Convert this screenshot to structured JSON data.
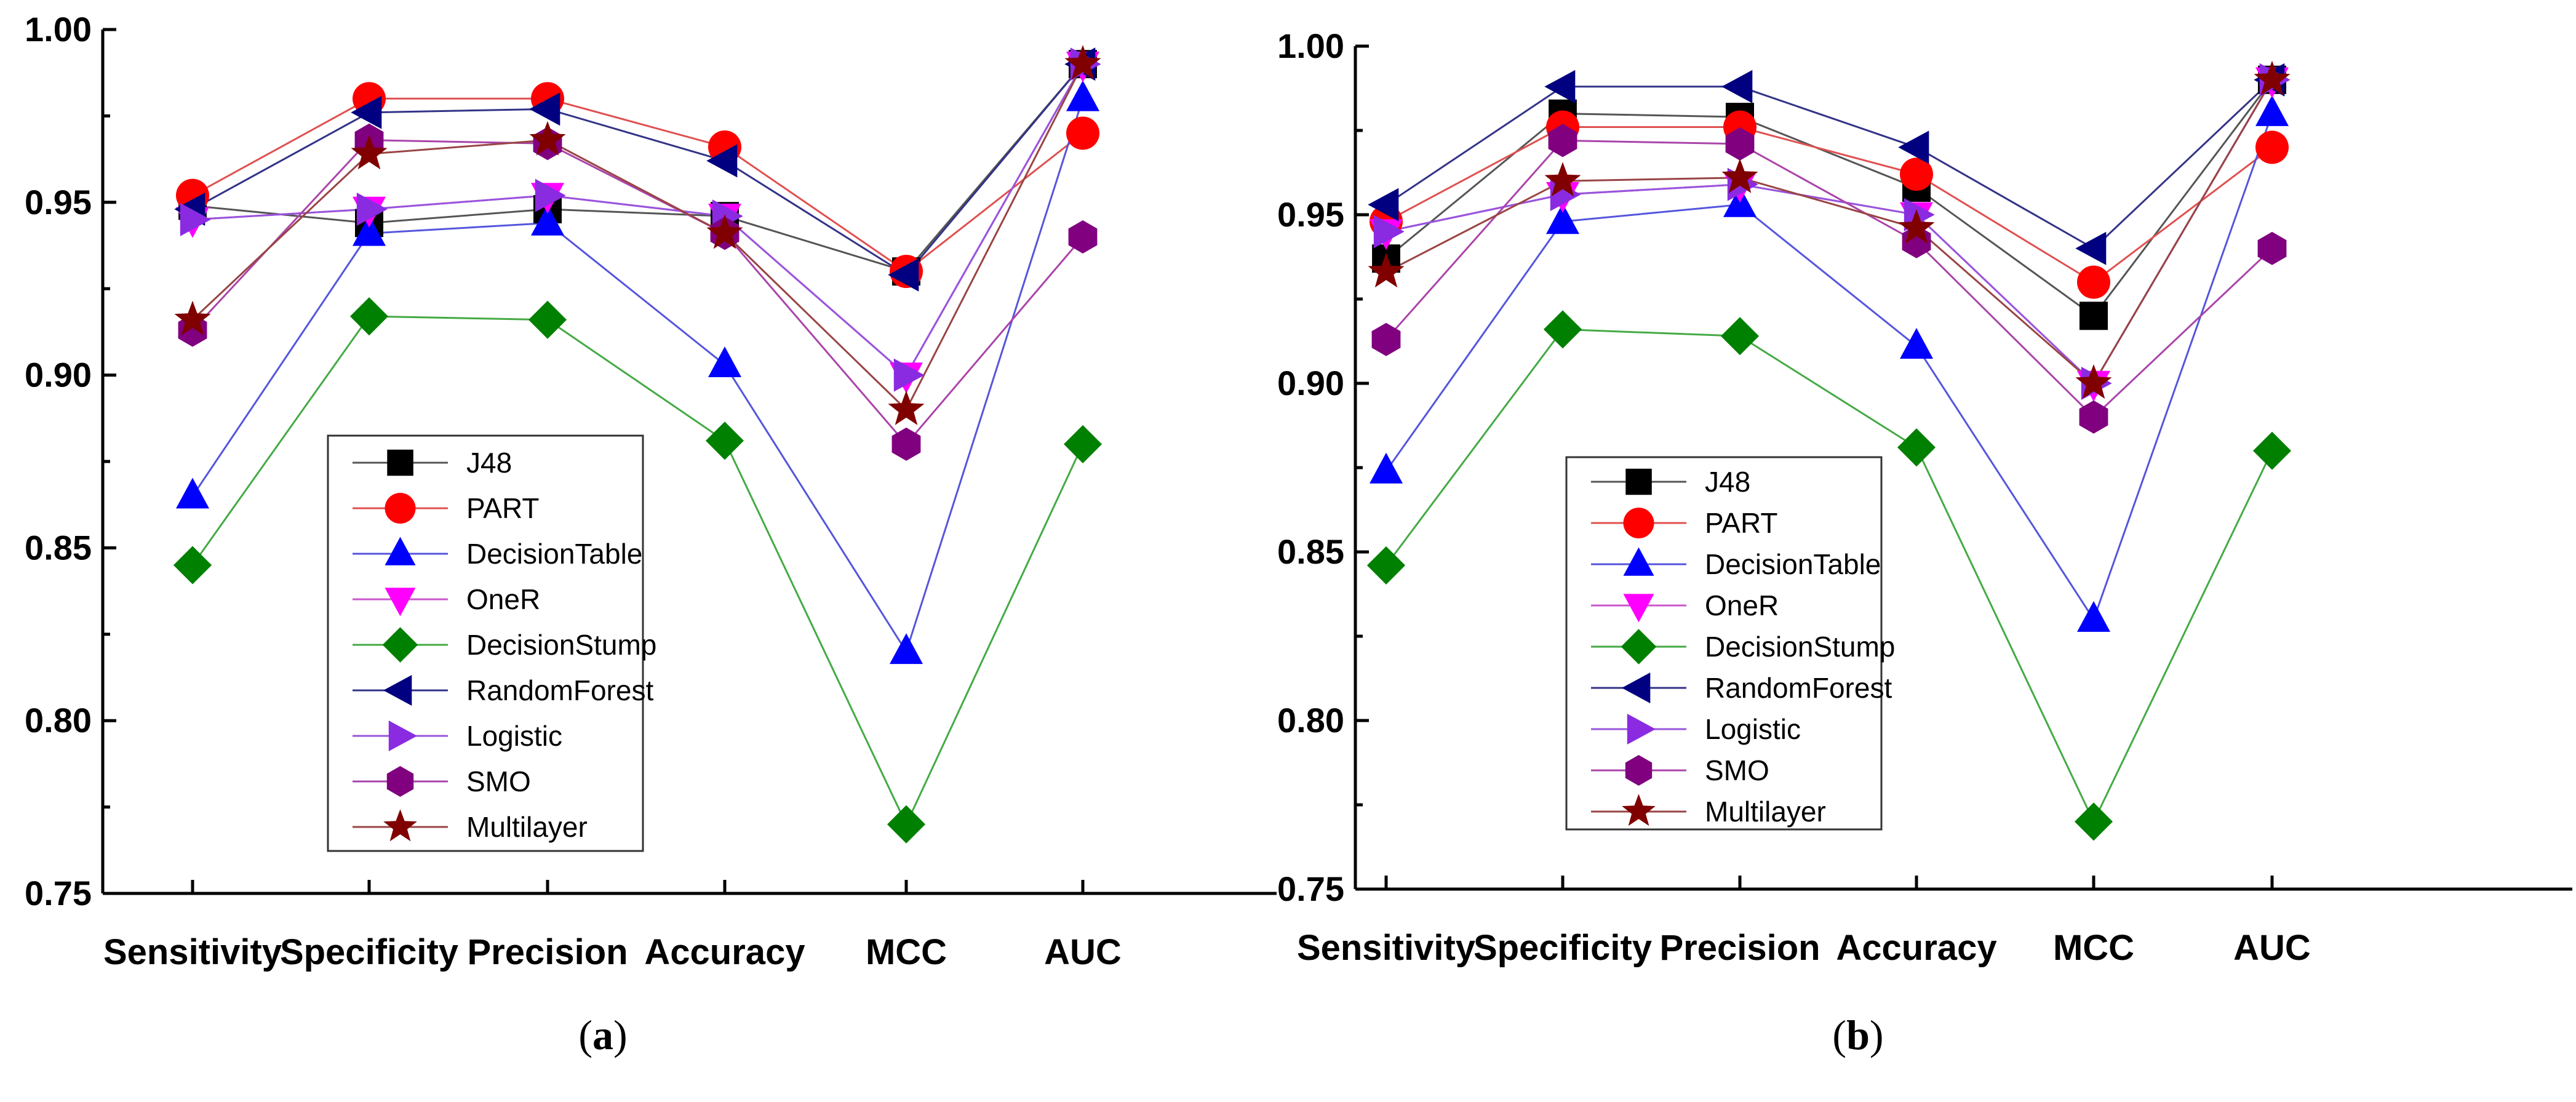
{
  "chart_data": [
    {
      "type": "line",
      "panel_label": "a",
      "categories": [
        "Sensitivity",
        "Specificity",
        "Precision",
        "Accuracy",
        "MCC",
        "AUC"
      ],
      "ylim": [
        0.75,
        1.0
      ],
      "yticks": [
        "0.75",
        "0.80",
        "0.85",
        "0.90",
        "0.95",
        "1.00"
      ],
      "legend_position": "center",
      "series": [
        {
          "name": "J48",
          "color": "#000000",
          "line_color": "#555555",
          "marker": "square",
          "values": [
            0.949,
            0.944,
            0.948,
            0.946,
            0.93,
            0.99
          ]
        },
        {
          "name": "PART",
          "color": "#ff0000",
          "line_color": "#e05050",
          "marker": "circle",
          "values": [
            0.952,
            0.98,
            0.98,
            0.966,
            0.93,
            0.97
          ]
        },
        {
          "name": "DecisionTable",
          "color": "#0000ff",
          "line_color": "#5555dd",
          "marker": "triangle-up",
          "values": [
            0.865,
            0.941,
            0.944,
            0.903,
            0.82,
            0.98
          ]
        },
        {
          "name": "OneR",
          "color": "#ff00ff",
          "line_color": "#cc55cc",
          "marker": "triangle-down",
          "values": [
            0.945,
            0.948,
            0.952,
            0.946,
            0.9,
            0.99
          ]
        },
        {
          "name": "DecisionStump",
          "color": "#008000",
          "line_color": "#44aa44",
          "marker": "diamond",
          "values": [
            0.845,
            0.917,
            0.916,
            0.881,
            0.77,
            0.88
          ]
        },
        {
          "name": "RandomForest",
          "color": "#000080",
          "line_color": "#333388",
          "marker": "triangle-left",
          "values": [
            0.948,
            0.976,
            0.977,
            0.962,
            0.929,
            0.99
          ]
        },
        {
          "name": "Logistic",
          "color": "#8a2be2",
          "line_color": "#9955dd",
          "marker": "triangle-right",
          "values": [
            0.945,
            0.948,
            0.952,
            0.946,
            0.9,
            0.99
          ]
        },
        {
          "name": "SMO",
          "color": "#800080",
          "line_color": "#aa44aa",
          "marker": "hexagon",
          "values": [
            0.913,
            0.968,
            0.967,
            0.941,
            0.88,
            0.94
          ]
        },
        {
          "name": "Multilayer",
          "color": "#800000",
          "line_color": "#994444",
          "marker": "star",
          "values": [
            0.916,
            0.964,
            0.968,
            0.941,
            0.89,
            0.99
          ]
        }
      ]
    },
    {
      "type": "line",
      "panel_label": "b",
      "categories": [
        "Sensitivity",
        "Specificity",
        "Precision",
        "Accuracy",
        "MCC",
        "AUC"
      ],
      "ylim": [
        0.75,
        1.0
      ],
      "yticks": [
        "0.75",
        "0.80",
        "0.85",
        "0.90",
        "0.95",
        "1.00"
      ],
      "legend_position": "center",
      "series": [
        {
          "name": "J48",
          "color": "#000000",
          "line_color": "#555555",
          "marker": "square",
          "values": [
            0.937,
            0.98,
            0.979,
            0.958,
            0.92,
            0.99
          ]
        },
        {
          "name": "PART",
          "color": "#ff0000",
          "line_color": "#e05050",
          "marker": "circle",
          "values": [
            0.948,
            0.976,
            0.976,
            0.962,
            0.93,
            0.97
          ]
        },
        {
          "name": "DecisionTable",
          "color": "#0000ff",
          "line_color": "#5555dd",
          "marker": "triangle-up",
          "values": [
            0.874,
            0.948,
            0.953,
            0.911,
            0.83,
            0.98
          ]
        },
        {
          "name": "OneR",
          "color": "#ff00ff",
          "line_color": "#cc55cc",
          "marker": "triangle-down",
          "values": [
            0.945,
            0.956,
            0.959,
            0.95,
            0.9,
            0.99
          ]
        },
        {
          "name": "DecisionStump",
          "color": "#008000",
          "line_color": "#44aa44",
          "marker": "diamond",
          "values": [
            0.846,
            0.916,
            0.914,
            0.881,
            0.77,
            0.88
          ]
        },
        {
          "name": "RandomForest",
          "color": "#000080",
          "line_color": "#333388",
          "marker": "triangle-left",
          "values": [
            0.953,
            0.988,
            0.988,
            0.97,
            0.94,
            0.99
          ]
        },
        {
          "name": "Logistic",
          "color": "#8a2be2",
          "line_color": "#9955dd",
          "marker": "triangle-right",
          "values": [
            0.945,
            0.956,
            0.959,
            0.95,
            0.9,
            0.99
          ]
        },
        {
          "name": "SMO",
          "color": "#800080",
          "line_color": "#aa44aa",
          "marker": "hexagon",
          "values": [
            0.913,
            0.972,
            0.971,
            0.942,
            0.89,
            0.94
          ]
        },
        {
          "name": "Multilayer",
          "color": "#800000",
          "line_color": "#994444",
          "marker": "star",
          "values": [
            0.933,
            0.96,
            0.961,
            0.946,
            0.9,
            0.99
          ]
        }
      ]
    }
  ]
}
